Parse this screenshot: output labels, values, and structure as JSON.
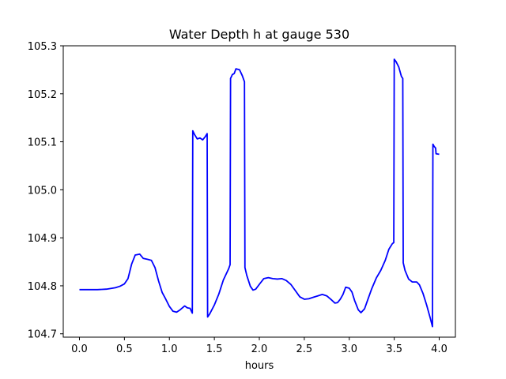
{
  "chart_data": {
    "type": "line",
    "title": "Water Depth h at gauge 530",
    "xlabel": "hours",
    "ylabel": "",
    "xlim": [
      -0.18,
      4.18
    ],
    "ylim": [
      104.693,
      105.3
    ],
    "xticks": [
      0.0,
      0.5,
      1.0,
      1.5,
      2.0,
      2.5,
      3.0,
      3.5,
      4.0
    ],
    "xtick_labels": [
      "0.0",
      "0.5",
      "1.0",
      "1.5",
      "2.0",
      "2.5",
      "3.0",
      "3.5",
      "4.0"
    ],
    "yticks": [
      104.7,
      104.8,
      104.9,
      105.0,
      105.1,
      105.2,
      105.3
    ],
    "ytick_labels": [
      "104.7",
      "104.8",
      "104.9",
      "105.0",
      "105.1",
      "105.2",
      "105.3"
    ],
    "grid": false,
    "series": [
      {
        "color": "#0000ff",
        "points": [
          [
            0.0,
            104.792
          ],
          [
            0.1,
            104.792
          ],
          [
            0.2,
            104.792
          ],
          [
            0.3,
            104.793
          ],
          [
            0.4,
            104.796
          ],
          [
            0.45,
            104.799
          ],
          [
            0.5,
            104.804
          ],
          [
            0.54,
            104.815
          ],
          [
            0.58,
            104.845
          ],
          [
            0.62,
            104.864
          ],
          [
            0.67,
            104.866
          ],
          [
            0.71,
            104.857
          ],
          [
            0.76,
            104.855
          ],
          [
            0.8,
            104.853
          ],
          [
            0.84,
            104.838
          ],
          [
            0.88,
            104.81
          ],
          [
            0.92,
            104.786
          ],
          [
            0.96,
            104.772
          ],
          [
            1.0,
            104.757
          ],
          [
            1.04,
            104.747
          ],
          [
            1.08,
            104.745
          ],
          [
            1.12,
            104.75
          ],
          [
            1.17,
            104.758
          ],
          [
            1.2,
            104.754
          ],
          [
            1.23,
            104.753
          ],
          [
            1.255,
            104.743
          ],
          [
            1.26,
            105.123
          ],
          [
            1.28,
            105.115
          ],
          [
            1.31,
            105.106
          ],
          [
            1.34,
            105.108
          ],
          [
            1.37,
            105.104
          ],
          [
            1.4,
            105.111
          ],
          [
            1.42,
            105.117
          ],
          [
            1.425,
            104.735
          ],
          [
            1.45,
            104.742
          ],
          [
            1.5,
            104.76
          ],
          [
            1.55,
            104.783
          ],
          [
            1.6,
            104.812
          ],
          [
            1.66,
            104.836
          ],
          [
            1.675,
            104.844
          ],
          [
            1.68,
            105.232
          ],
          [
            1.7,
            105.24
          ],
          [
            1.72,
            105.242
          ],
          [
            1.74,
            105.252
          ],
          [
            1.76,
            105.251
          ],
          [
            1.78,
            105.25
          ],
          [
            1.81,
            105.238
          ],
          [
            1.835,
            105.225
          ],
          [
            1.84,
            104.838
          ],
          [
            1.86,
            104.822
          ],
          [
            1.9,
            104.799
          ],
          [
            1.93,
            104.791
          ],
          [
            1.96,
            104.793
          ],
          [
            2.0,
            104.803
          ],
          [
            2.05,
            104.815
          ],
          [
            2.1,
            104.817
          ],
          [
            2.15,
            104.815
          ],
          [
            2.2,
            104.814
          ],
          [
            2.25,
            104.815
          ],
          [
            2.3,
            104.811
          ],
          [
            2.35,
            104.803
          ],
          [
            2.4,
            104.79
          ],
          [
            2.45,
            104.777
          ],
          [
            2.5,
            104.772
          ],
          [
            2.55,
            104.773
          ],
          [
            2.6,
            104.776
          ],
          [
            2.65,
            104.779
          ],
          [
            2.7,
            104.782
          ],
          [
            2.75,
            104.779
          ],
          [
            2.8,
            104.771
          ],
          [
            2.84,
            104.764
          ],
          [
            2.87,
            104.765
          ],
          [
            2.9,
            104.772
          ],
          [
            2.93,
            104.782
          ],
          [
            2.96,
            104.797
          ],
          [
            3.0,
            104.795
          ],
          [
            3.03,
            104.787
          ],
          [
            3.06,
            104.769
          ],
          [
            3.1,
            104.75
          ],
          [
            3.13,
            104.744
          ],
          [
            3.17,
            104.752
          ],
          [
            3.2,
            104.768
          ],
          [
            3.25,
            104.794
          ],
          [
            3.3,
            104.816
          ],
          [
            3.35,
            104.832
          ],
          [
            3.4,
            104.853
          ],
          [
            3.44,
            104.876
          ],
          [
            3.48,
            104.888
          ],
          [
            3.495,
            104.89
          ],
          [
            3.5,
            105.272
          ],
          [
            3.52,
            105.267
          ],
          [
            3.55,
            105.256
          ],
          [
            3.58,
            105.236
          ],
          [
            3.595,
            105.232
          ],
          [
            3.6,
            104.848
          ],
          [
            3.62,
            104.832
          ],
          [
            3.66,
            104.814
          ],
          [
            3.7,
            104.808
          ],
          [
            3.75,
            104.808
          ],
          [
            3.78,
            104.802
          ],
          [
            3.82,
            104.784
          ],
          [
            3.86,
            104.76
          ],
          [
            3.9,
            104.733
          ],
          [
            3.925,
            104.715
          ],
          [
            3.93,
            105.095
          ],
          [
            3.945,
            105.09
          ],
          [
            3.96,
            105.087
          ],
          [
            3.965,
            105.075
          ],
          [
            4.0,
            105.074
          ]
        ]
      }
    ]
  }
}
